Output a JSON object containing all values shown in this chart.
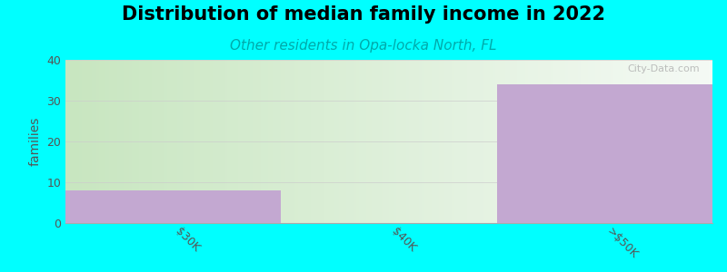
{
  "title": "Distribution of median family income in 2022",
  "subtitle": "Other residents in Opa-locka North, FL",
  "categories": [
    "$30K",
    "$40K",
    ">$50K"
  ],
  "values": [
    8,
    0,
    34
  ],
  "ylim": [
    0,
    40
  ],
  "yticks": [
    0,
    10,
    20,
    30,
    40
  ],
  "ylabel": "families",
  "bar_color": "#C3A8D1",
  "bar_bg_color_left": "#C8E6C0",
  "bar_bg_color_right": "#F0F5F0",
  "bg_color": "#00FFFF",
  "title_fontsize": 15,
  "subtitle_fontsize": 11,
  "subtitle_color": "#00AAAA",
  "title_color": "#000000",
  "watermark": "City-Data.com",
  "x_positions": [
    0.0,
    1.0,
    2.0
  ],
  "bar_edges": [
    -0.5,
    0.5,
    1.5,
    2.5
  ]
}
